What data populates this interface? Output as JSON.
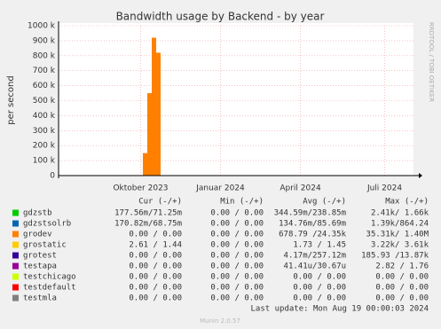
{
  "chart_data": {
    "type": "area",
    "title": "Bandwidth usage by Backend - by year",
    "y_label": "per second",
    "side_label": "RRDTOOL / TOBI OETIKER",
    "categories": [
      null,
      null,
      null,
      null,
      null,
      null,
      null,
      null,
      null,
      null,
      null,
      null,
      null,
      null,
      null,
      null,
      null,
      null,
      "Oktober 2023",
      null,
      null,
      null,
      null,
      null,
      null,
      null,
      null,
      null,
      null,
      null,
      null,
      null,
      null,
      null,
      null,
      null,
      "Januar 2024",
      null,
      null,
      null,
      null,
      null,
      null,
      null,
      null,
      null,
      null,
      null,
      null,
      null,
      null,
      null,
      null,
      null,
      "April 2024",
      null,
      null,
      null,
      null,
      null,
      null,
      null,
      null,
      null,
      null,
      null,
      null,
      null,
      null,
      null,
      null,
      null,
      null,
      "Juli 2024",
      null,
      null,
      null,
      null,
      null,
      null
    ],
    "series": [
      {
        "name": "grodev",
        "color": "#ff8000",
        "values": [
          0,
          0,
          0,
          0,
          0,
          0,
          0,
          0,
          0,
          0,
          0,
          0,
          0,
          0,
          0,
          0,
          0,
          0,
          0,
          150000,
          550000,
          920000,
          820000,
          0,
          0,
          0,
          0,
          0,
          0,
          0,
          0,
          0,
          0,
          0,
          0,
          0,
          0,
          0,
          0,
          0,
          0,
          0,
          0,
          0,
          0,
          0,
          0,
          0,
          0,
          0,
          0,
          0,
          0,
          0,
          0,
          0,
          0,
          0,
          0,
          0,
          0,
          0,
          0,
          0,
          0,
          0,
          0,
          0,
          0,
          0,
          0,
          0,
          0,
          0,
          0,
          0,
          0,
          0,
          0,
          0
        ]
      }
    ],
    "ylim": [
      0,
      1000000
    ],
    "yticks": [
      0,
      {
        "value": 100000,
        "label": "100 k"
      },
      {
        "value": 200000,
        "label": "200 k"
      },
      {
        "value": 300000,
        "label": "300 k"
      },
      {
        "value": 400000,
        "label": "400 k"
      },
      {
        "value": 500000,
        "label": "500 k"
      },
      {
        "value": 600000,
        "label": "600 k"
      },
      {
        "value": 700000,
        "label": "700 k"
      },
      {
        "value": 800000,
        "label": "800 k"
      },
      {
        "value": 900000,
        "label": "900 k"
      },
      {
        "value": 1000000,
        "label": "1000 k"
      }
    ],
    "grid": true,
    "legend_table": {
      "headers": [
        "Cur (-/+)",
        "Min (-/+)",
        "Avg (-/+)",
        "Max (-/+)"
      ],
      "rows": [
        {
          "name": "gdzstb",
          "color": "#00cc00",
          "cells": [
            "177.56m/71.25m",
            "0.00 / 0.00",
            "344.59m/238.85m",
            "2.41k/ 1.66k"
          ]
        },
        {
          "name": "gdzstsolrb",
          "color": "#0066b3",
          "cells": [
            "170.82m/68.75m",
            "0.00 / 0.00",
            "134.76m/85.69m",
            "1.39k/864.24"
          ]
        },
        {
          "name": "grodev",
          "color": "#ff8000",
          "cells": [
            "0.00 / 0.00",
            "0.00 / 0.00",
            "678.79 /24.35k",
            "35.31k/ 1.40M"
          ]
        },
        {
          "name": "grostatic",
          "color": "#ffcc00",
          "cells": [
            "2.61 / 1.44",
            "0.00 / 0.00",
            "1.73 / 1.45",
            "3.22k/ 3.61k"
          ]
        },
        {
          "name": "grotest",
          "color": "#330099",
          "cells": [
            "0.00 / 0.00",
            "0.00 / 0.00",
            "4.17m/257.12m",
            "185.93 /13.87k"
          ]
        },
        {
          "name": "testapa",
          "color": "#990099",
          "cells": [
            "0.00 / 0.00",
            "0.00 / 0.00",
            "41.41u/30.67u",
            "2.82 / 1.76"
          ]
        },
        {
          "name": "testchicago",
          "color": "#ccff00",
          "cells": [
            "0.00 / 0.00",
            "0.00 / 0.00",
            "0.00 / 0.00",
            "0.00 / 0.00"
          ]
        },
        {
          "name": "testdefault",
          "color": "#ff0000",
          "cells": [
            "0.00 / 0.00",
            "0.00 / 0.00",
            "0.00 / 0.00",
            "0.00 / 0.00"
          ]
        },
        {
          "name": "testmla",
          "color": "#808080",
          "cells": [
            "0.00 / 0.00",
            "0.00 / 0.00",
            "0.00 / 0.00",
            "0.00 / 0.00"
          ]
        }
      ]
    },
    "last_update": "Last update: Mon Aug 19 00:00:03 2024",
    "footer": "Munin 2.0.57"
  }
}
